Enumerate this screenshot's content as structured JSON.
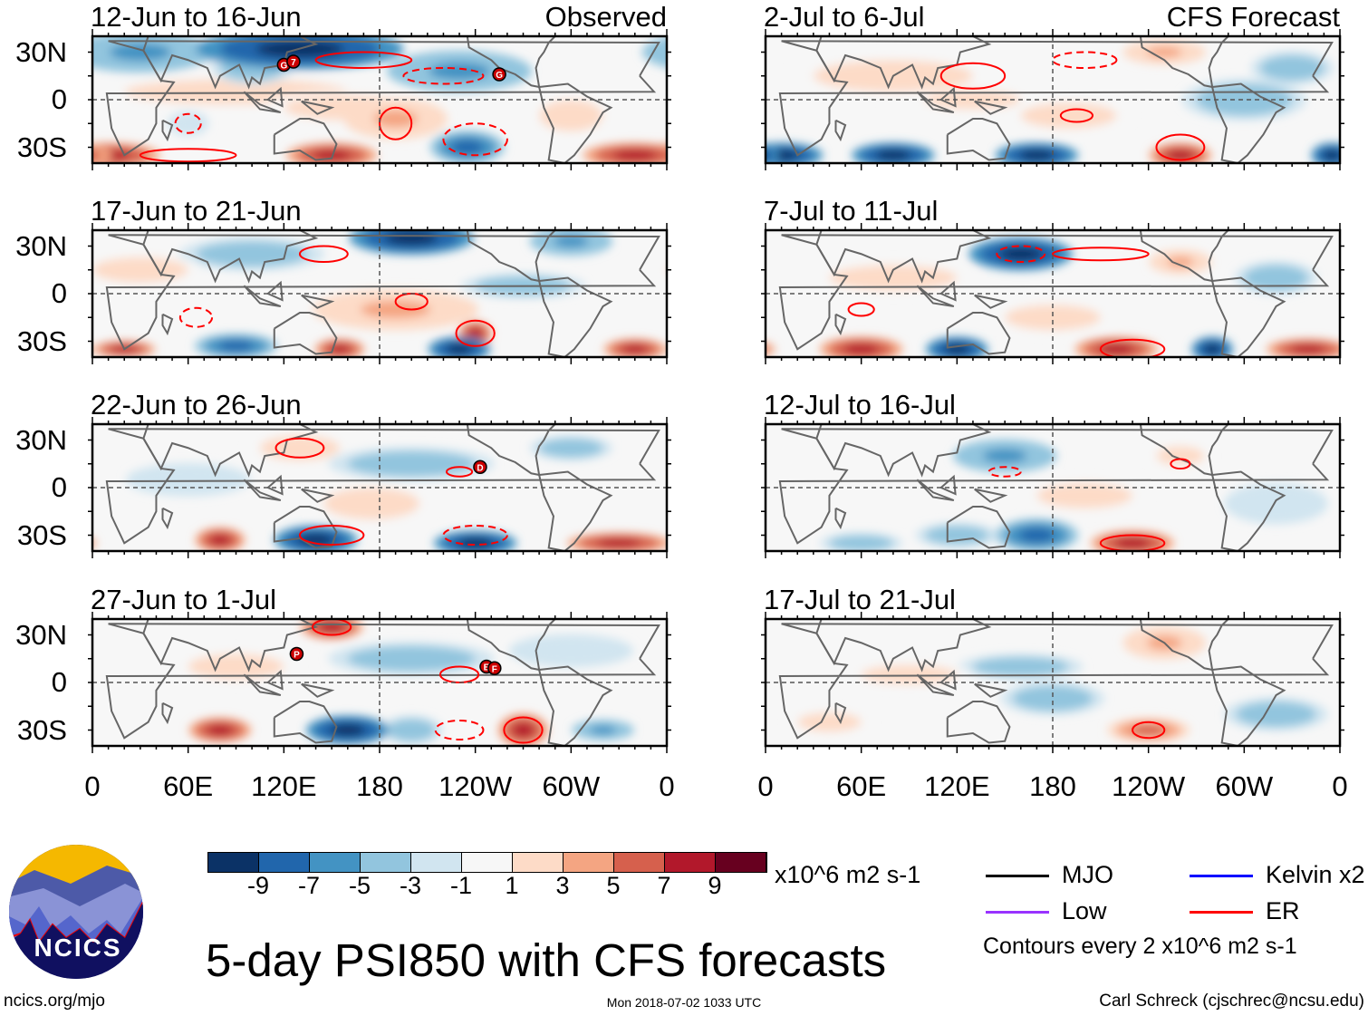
{
  "titles": {
    "left": "Observed",
    "right": "CFS Forecast"
  },
  "lat_labels": [
    "30N",
    "0",
    "30S"
  ],
  "lon_labels": [
    "0",
    "60E",
    "120E",
    "180",
    "120W",
    "60W",
    "0"
  ],
  "panels": [
    {
      "label": "12-Jun to 16-Jun",
      "col": 0,
      "row": 0,
      "blobs": [
        [
          130,
          32,
          -9,
          50,
          10
        ],
        [
          30,
          30,
          -5,
          35,
          10
        ],
        [
          230,
          18,
          -5,
          35,
          10
        ],
        [
          90,
          5,
          3,
          70,
          8
        ],
        [
          160,
          -5,
          3,
          40,
          8
        ],
        [
          190,
          -12,
          5,
          25,
          10
        ],
        [
          235,
          -30,
          -7,
          18,
          8
        ],
        [
          10,
          -35,
          9,
          25,
          6
        ],
        [
          150,
          -35,
          9,
          22,
          6
        ],
        [
          340,
          -35,
          9,
          25,
          6
        ],
        [
          60,
          -15,
          -1,
          10,
          6
        ],
        [
          300,
          -10,
          3,
          20,
          10
        ],
        [
          100,
          20,
          -3,
          20,
          8
        ]
      ],
      "contours": [
        [
          170,
          25,
          1,
          30,
          5
        ],
        [
          220,
          15,
          -1,
          25,
          5
        ],
        [
          190,
          -15,
          1,
          10,
          10
        ],
        [
          240,
          -25,
          -1,
          20,
          10
        ],
        [
          60,
          -15,
          -1,
          8,
          6
        ],
        [
          60,
          -35,
          1,
          30,
          4
        ]
      ],
      "storms": [
        [
          "G",
          120,
          22
        ],
        [
          "7",
          126,
          24
        ],
        [
          "G",
          255,
          16
        ]
      ]
    },
    {
      "label": "17-Jun to 21-Jun",
      "col": 0,
      "row": 1,
      "blobs": [
        [
          200,
          35,
          -9,
          30,
          8
        ],
        [
          300,
          33,
          -5,
          20,
          7
        ],
        [
          100,
          25,
          -3,
          35,
          8
        ],
        [
          30,
          15,
          3,
          30,
          8
        ],
        [
          190,
          -10,
          5,
          40,
          10
        ],
        [
          240,
          -25,
          9,
          8,
          6
        ],
        [
          230,
          -35,
          -9,
          15,
          6
        ],
        [
          155,
          -35,
          9,
          12,
          5
        ],
        [
          90,
          -33,
          -7,
          20,
          6
        ],
        [
          340,
          -35,
          9,
          15,
          5
        ],
        [
          20,
          -35,
          9,
          15,
          4
        ],
        [
          270,
          5,
          -3,
          30,
          6
        ]
      ],
      "contours": [
        [
          145,
          25,
          1,
          15,
          5
        ],
        [
          65,
          -15,
          -1,
          10,
          6
        ],
        [
          200,
          -5,
          1,
          10,
          5
        ],
        [
          240,
          -25,
          1,
          12,
          8
        ]
      ],
      "storms": []
    },
    {
      "label": "22-Jun to 26-Jun",
      "col": 0,
      "row": 2,
      "blobs": [
        [
          130,
          25,
          3,
          25,
          8
        ],
        [
          200,
          15,
          -3,
          40,
          8
        ],
        [
          60,
          5,
          -1,
          30,
          8
        ],
        [
          175,
          -10,
          3,
          30,
          10
        ],
        [
          80,
          -33,
          9,
          12,
          6
        ],
        [
          140,
          -33,
          -9,
          20,
          7
        ],
        [
          240,
          -35,
          -9,
          20,
          6
        ],
        [
          330,
          -35,
          9,
          25,
          5
        ],
        [
          300,
          25,
          -3,
          20,
          6
        ]
      ],
      "contours": [
        [
          130,
          25,
          1,
          15,
          6
        ],
        [
          230,
          10,
          1,
          8,
          3
        ],
        [
          150,
          -30,
          1,
          20,
          6
        ],
        [
          240,
          -30,
          -1,
          20,
          6
        ]
      ],
      "storms": [
        [
          "D",
          243,
          13
        ]
      ]
    },
    {
      "label": "27-Jun to 1-Jul",
      "col": 0,
      "row": 3,
      "blobs": [
        [
          150,
          35,
          9,
          15,
          6
        ],
        [
          200,
          15,
          -3,
          40,
          8
        ],
        [
          90,
          10,
          3,
          30,
          8
        ],
        [
          80,
          -30,
          9,
          15,
          6
        ],
        [
          160,
          -30,
          -9,
          20,
          7
        ],
        [
          200,
          -30,
          -3,
          15,
          7
        ],
        [
          270,
          -30,
          9,
          12,
          8
        ],
        [
          320,
          -30,
          -5,
          15,
          5
        ],
        [
          300,
          20,
          -1,
          30,
          8
        ]
      ],
      "contours": [
        [
          150,
          35,
          1,
          12,
          5
        ],
        [
          230,
          5,
          1,
          12,
          5
        ],
        [
          270,
          -30,
          1,
          12,
          8
        ],
        [
          230,
          -30,
          -1,
          15,
          6
        ]
      ],
      "storms": [
        [
          "P",
          128,
          18
        ],
        [
          "E",
          247,
          10
        ],
        [
          "F",
          252,
          9
        ]
      ]
    },
    {
      "label": "2-Jul to 6-Jul",
      "col": 1,
      "row": 0,
      "blobs": [
        [
          80,
          15,
          3,
          50,
          10
        ],
        [
          130,
          0,
          3,
          30,
          6
        ],
        [
          250,
          30,
          5,
          20,
          6
        ],
        [
          190,
          -10,
          3,
          30,
          8
        ],
        [
          10,
          -35,
          -9,
          20,
          6
        ],
        [
          80,
          -35,
          -9,
          20,
          6
        ],
        [
          170,
          -35,
          -9,
          20,
          6
        ],
        [
          260,
          -35,
          9,
          15,
          6
        ],
        [
          355,
          -35,
          -9,
          10,
          6
        ],
        [
          300,
          0,
          -3,
          30,
          10
        ],
        [
          330,
          20,
          -3,
          20,
          8
        ]
      ],
      "contours": [
        [
          130,
          15,
          1,
          20,
          8
        ],
        [
          200,
          25,
          -1,
          20,
          5
        ],
        [
          260,
          -30,
          1,
          15,
          8
        ],
        [
          195,
          -10,
          1,
          10,
          4
        ]
      ],
      "storms": []
    },
    {
      "label": "7-Jul to 11-Jul",
      "col": 1,
      "row": 1,
      "blobs": [
        [
          160,
          25,
          -9,
          25,
          8
        ],
        [
          260,
          20,
          5,
          15,
          6
        ],
        [
          80,
          10,
          3,
          40,
          8
        ],
        [
          180,
          -15,
          3,
          30,
          8
        ],
        [
          60,
          -35,
          9,
          20,
          6
        ],
        [
          120,
          -35,
          -9,
          15,
          6
        ],
        [
          220,
          -35,
          9,
          20,
          6
        ],
        [
          280,
          -35,
          -9,
          10,
          6
        ],
        [
          340,
          -35,
          9,
          20,
          5
        ],
        [
          320,
          10,
          -3,
          20,
          8
        ]
      ],
      "contours": [
        [
          160,
          25,
          -1,
          15,
          5
        ],
        [
          60,
          -10,
          1,
          8,
          4
        ],
        [
          230,
          -35,
          1,
          20,
          6
        ],
        [
          210,
          25,
          1,
          30,
          4
        ]
      ],
      "storms": []
    },
    {
      "label": "12-Jul to 16-Jul",
      "col": 1,
      "row": 2,
      "blobs": [
        [
          150,
          20,
          -5,
          25,
          8
        ],
        [
          260,
          20,
          3,
          15,
          6
        ],
        [
          200,
          -5,
          3,
          30,
          8
        ],
        [
          170,
          -30,
          -7,
          20,
          8
        ],
        [
          230,
          -35,
          9,
          20,
          6
        ],
        [
          120,
          -30,
          -3,
          20,
          6
        ],
        [
          60,
          -35,
          -3,
          20,
          5
        ],
        [
          320,
          -10,
          -1,
          25,
          10
        ]
      ],
      "contours": [
        [
          150,
          10,
          -1,
          10,
          3
        ],
        [
          260,
          15,
          1,
          6,
          3
        ],
        [
          230,
          -35,
          1,
          20,
          5
        ]
      ],
      "storms": []
    },
    {
      "label": "17-Jul to 21-Jul",
      "col": 1,
      "row": 3,
      "blobs": [
        [
          250,
          25,
          5,
          20,
          8
        ],
        [
          160,
          10,
          -3,
          30,
          6
        ],
        [
          90,
          5,
          3,
          30,
          6
        ],
        [
          240,
          -30,
          7,
          20,
          6
        ],
        [
          180,
          -10,
          -3,
          25,
          8
        ],
        [
          320,
          -20,
          -3,
          25,
          8
        ],
        [
          40,
          -25,
          3,
          20,
          6
        ]
      ],
      "contours": [
        [
          240,
          -30,
          1,
          10,
          5
        ]
      ],
      "storms": []
    }
  ],
  "colorbar": {
    "ticks": [
      "-9",
      "-7",
      "-5",
      "-3",
      "-1",
      "1",
      "3",
      "5",
      "7",
      "9"
    ],
    "units": "x10^6 m2 s-1",
    "colors": [
      "#0b3266",
      "#2166ac",
      "#4393c3",
      "#92c5de",
      "#d1e5f0",
      "#f7f7f7",
      "#fddbc7",
      "#f4a582",
      "#d6604d",
      "#b2182b",
      "#67001f"
    ]
  },
  "legend": {
    "items": [
      {
        "label": "MJO",
        "color": "#000000"
      },
      {
        "label": "Kelvin x2",
        "color": "#0000ff"
      },
      {
        "label": "Low",
        "color": "#9933ff"
      },
      {
        "label": "ER",
        "color": "#ff0000"
      }
    ],
    "contours_note": "Contours every 2 x10^6 m2 s-1"
  },
  "main_title": "5-day PSI850 with CFS forecasts",
  "logo_text": "NCICS",
  "footer": {
    "url": "ncics.org/mjo",
    "timestamp": "Mon 2018-07-02 1033 UTC",
    "credit": "Carl Schreck (cjschrec@ncsu.edu)"
  }
}
